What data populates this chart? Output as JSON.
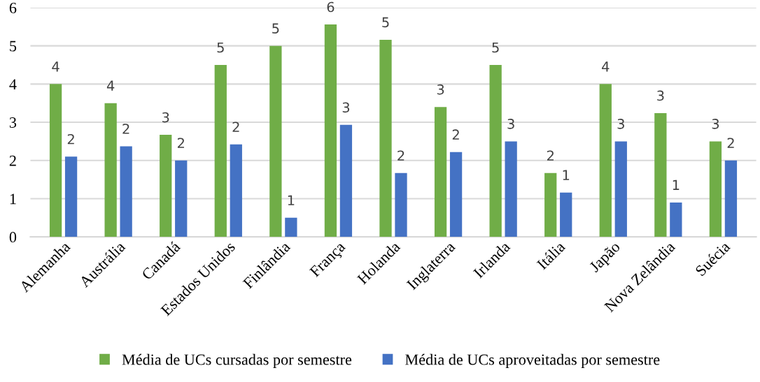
{
  "chart_data": {
    "type": "bar",
    "categories": [
      "Alemanha",
      "Austrália",
      "Canadá",
      "Estados Unidos",
      "Finlândia",
      "França",
      "Holanda",
      "Inglaterra",
      "Irlanda",
      "Itália",
      "Japão",
      "Nova Zelândia",
      "Suécia"
    ],
    "series": [
      {
        "name": "Média de UCs cursadas por semestre",
        "color": "#70ad47",
        "values": [
          4.0,
          3.5,
          2.67,
          4.5,
          5.0,
          5.56,
          5.16,
          3.4,
          4.5,
          1.67,
          4.0,
          3.24,
          2.5
        ],
        "value_labels": [
          "4",
          "4",
          "3",
          "5",
          "5",
          "6",
          "5",
          "3",
          "5",
          "2",
          "4",
          "3",
          "3"
        ]
      },
      {
        "name": "Média de UCs aproveitadas por semestre",
        "color": "#4472c4",
        "values": [
          2.1,
          2.37,
          2.0,
          2.42,
          0.5,
          2.93,
          1.67,
          2.22,
          2.5,
          1.16,
          2.5,
          0.9,
          2.0
        ],
        "value_labels": [
          "2",
          "2",
          "2",
          "2",
          "1",
          "3",
          "2",
          "2",
          "3",
          "1",
          "3",
          "1",
          "2"
        ]
      }
    ],
    "ylim": [
      0,
      6
    ],
    "yticks": [
      0,
      1,
      2,
      3,
      4,
      5,
      6
    ],
    "grid": "y",
    "legend": "bottom"
  }
}
